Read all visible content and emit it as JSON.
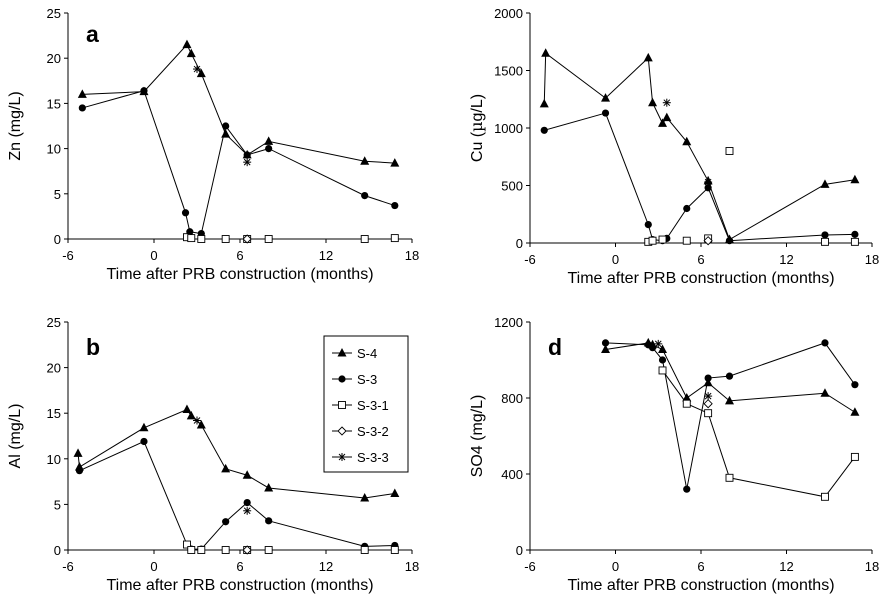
{
  "chart_data": [
    {
      "type": "line",
      "panel_label": "a",
      "xlabel": "Time after PRB construction (months)",
      "ylabel": "Zn  (mg/L)",
      "xlim": [
        -6,
        18
      ],
      "ylim": [
        0,
        25
      ],
      "xticks": [
        -6,
        0,
        6,
        12,
        18
      ],
      "yticks": [
        0,
        5,
        10,
        15,
        20,
        25
      ],
      "grid": false,
      "series": [
        {
          "name": "S-4",
          "marker": "triangle",
          "connected": true,
          "points": [
            [
              -5,
              16.0
            ],
            [
              -0.7,
              16.3
            ],
            [
              2.3,
              21.5
            ],
            [
              2.6,
              20.5
            ],
            [
              3.3,
              18.3
            ],
            [
              5,
              11.6
            ],
            [
              6.5,
              9.3
            ],
            [
              8,
              10.8
            ],
            [
              14.7,
              8.6
            ],
            [
              16.8,
              8.4
            ]
          ]
        },
        {
          "name": "S-3",
          "marker": "circle",
          "connected": true,
          "points": [
            [
              -5,
              14.5
            ],
            [
              -0.7,
              16.4
            ],
            [
              2.2,
              2.9
            ],
            [
              2.5,
              0.8
            ],
            [
              3.3,
              0.6
            ],
            [
              5,
              12.5
            ],
            [
              6.5,
              9.3
            ],
            [
              8,
              10.0
            ],
            [
              14.7,
              4.8
            ],
            [
              16.8,
              3.7
            ]
          ]
        },
        {
          "name": "S-3-1",
          "marker": "square",
          "connected": false,
          "points": [
            [
              2.3,
              0.2
            ],
            [
              2.6,
              0.1
            ],
            [
              3.3,
              0.0
            ],
            [
              5,
              0.0
            ],
            [
              6.5,
              0.0
            ],
            [
              8,
              0.0
            ],
            [
              14.7,
              0.0
            ],
            [
              16.8,
              0.1
            ]
          ]
        },
        {
          "name": "S-3-2",
          "marker": "diamond",
          "connected": false,
          "points": [
            [
              6.5,
              0.0
            ]
          ]
        },
        {
          "name": "S-3-3",
          "marker": "star",
          "connected": false,
          "points": [
            [
              3.0,
              18.8
            ],
            [
              6.5,
              8.5
            ]
          ]
        }
      ]
    },
    {
      "type": "line",
      "panel_label": "",
      "xlabel": "Time after PRB construction (months)",
      "ylabel": "Cu  (µg/L)",
      "xlim": [
        -6,
        18
      ],
      "ylim": [
        0,
        2000
      ],
      "xticks": [
        -6,
        0,
        6,
        12,
        18
      ],
      "yticks": [
        0,
        500,
        1000,
        1500,
        2000
      ],
      "grid": false,
      "series": [
        {
          "name": "S-4",
          "marker": "triangle",
          "connected": true,
          "points": [
            [
              -5,
              1210
            ],
            [
              -4.9,
              1650
            ],
            [
              -0.7,
              1260
            ],
            [
              2.3,
              1610
            ],
            [
              2.6,
              1220
            ],
            [
              3.3,
              1040
            ],
            [
              3.6,
              1090
            ],
            [
              5,
              880
            ],
            [
              6.5,
              540
            ],
            [
              8,
              30
            ],
            [
              14.7,
              510
            ],
            [
              16.8,
              550
            ]
          ]
        },
        {
          "name": "S-3",
          "marker": "circle",
          "connected": true,
          "points": [
            [
              -5,
              980
            ],
            [
              -0.7,
              1130
            ],
            [
              2.3,
              160
            ],
            [
              2.6,
              30
            ],
            [
              3.3,
              20
            ],
            [
              3.6,
              40
            ],
            [
              5,
              300
            ],
            [
              6.5,
              480
            ],
            [
              8,
              20
            ],
            [
              14.7,
              70
            ],
            [
              16.8,
              75
            ]
          ]
        },
        {
          "name": "S-3-1",
          "marker": "square",
          "connected": false,
          "points": [
            [
              2.3,
              10
            ],
            [
              2.6,
              20
            ],
            [
              3.3,
              30
            ],
            [
              5,
              20
            ],
            [
              6.5,
              40
            ],
            [
              8,
              800
            ],
            [
              14.7,
              10
            ],
            [
              16.8,
              10
            ]
          ]
        },
        {
          "name": "S-3-2",
          "marker": "diamond",
          "connected": false,
          "points": [
            [
              6.5,
              20
            ]
          ]
        },
        {
          "name": "S-3-3",
          "marker": "star",
          "connected": false,
          "points": [
            [
              3.6,
              1220
            ],
            [
              6.5,
              530
            ]
          ]
        }
      ]
    },
    {
      "type": "line",
      "panel_label": "b",
      "xlabel": "Time after PRB construction (months)",
      "ylabel": "Al (mg/L)",
      "xlim": [
        -6,
        18
      ],
      "ylim": [
        0,
        25
      ],
      "xticks": [
        -6,
        0,
        6,
        12,
        18
      ],
      "yticks": [
        0,
        5,
        10,
        15,
        20,
        25
      ],
      "grid": false,
      "legend": {
        "position": "top-right",
        "entries": [
          "S-4",
          "S-3",
          "S-3-1",
          "S-3-2",
          "S-3-3"
        ]
      },
      "series": [
        {
          "name": "S-4",
          "marker": "triangle",
          "connected": true,
          "points": [
            [
              -5.3,
              10.6
            ],
            [
              -5.2,
              9.1
            ],
            [
              -0.7,
              13.4
            ],
            [
              2.3,
              15.4
            ],
            [
              2.6,
              14.7
            ],
            [
              3.3,
              13.7
            ],
            [
              5,
              8.9
            ],
            [
              6.5,
              8.2
            ],
            [
              8,
              6.8
            ],
            [
              14.7,
              5.7
            ],
            [
              16.8,
              6.2
            ]
          ]
        },
        {
          "name": "S-3",
          "marker": "circle",
          "connected": true,
          "points": [
            [
              -5.2,
              8.7
            ],
            [
              -0.7,
              11.9
            ],
            [
              2.3,
              0.6
            ],
            [
              2.6,
              0.1
            ],
            [
              3.3,
              0.1
            ],
            [
              5,
              3.1
            ],
            [
              6.5,
              5.2
            ],
            [
              8,
              3.2
            ],
            [
              14.7,
              0.4
            ],
            [
              16.8,
              0.5
            ]
          ]
        },
        {
          "name": "S-3-1",
          "marker": "square",
          "connected": false,
          "points": [
            [
              2.3,
              0.6
            ],
            [
              2.6,
              0.0
            ],
            [
              3.3,
              0.0
            ],
            [
              5,
              0.0
            ],
            [
              6.5,
              0.0
            ],
            [
              8,
              0.0
            ],
            [
              14.7,
              0.0
            ],
            [
              16.8,
              0.0
            ]
          ]
        },
        {
          "name": "S-3-2",
          "marker": "diamond",
          "connected": false,
          "points": [
            [
              6.5,
              0.0
            ]
          ]
        },
        {
          "name": "S-3-3",
          "marker": "star",
          "connected": false,
          "points": [
            [
              3.0,
              14.2
            ],
            [
              6.5,
              4.3
            ]
          ]
        }
      ]
    },
    {
      "type": "line",
      "panel_label": "d",
      "xlabel": "Time after PRB construction (months)",
      "ylabel": "SO4 (mg/L)",
      "xlim": [
        -6,
        18
      ],
      "ylim": [
        0,
        1200
      ],
      "xticks": [
        -6,
        0,
        6,
        12,
        18
      ],
      "yticks": [
        0,
        400,
        800,
        1200
      ],
      "grid": false,
      "series": [
        {
          "name": "S-4",
          "marker": "triangle",
          "connected": true,
          "points": [
            [
              -0.7,
              1055
            ],
            [
              2.3,
              1090
            ],
            [
              2.6,
              1080
            ],
            [
              3.3,
              1055
            ],
            [
              5,
              800
            ],
            [
              6.5,
              880
            ],
            [
              8,
              785
            ],
            [
              14.7,
              825
            ],
            [
              16.8,
              725
            ]
          ]
        },
        {
          "name": "S-3",
          "marker": "circle",
          "connected": true,
          "points": [
            [
              -0.7,
              1090
            ],
            [
              2.3,
              1080
            ],
            [
              2.6,
              1065
            ],
            [
              3.3,
              1000
            ],
            [
              5,
              320
            ],
            [
              6.5,
              905
            ],
            [
              8,
              915
            ],
            [
              14.7,
              1090
            ],
            [
              16.8,
              870
            ]
          ]
        },
        {
          "name": "S-3-1",
          "marker": "square",
          "connected": true,
          "points": [
            [
              3.3,
              945
            ],
            [
              5,
              770
            ],
            [
              6.5,
              720
            ],
            [
              8,
              380
            ],
            [
              14.7,
              280
            ],
            [
              16.8,
              490
            ]
          ]
        },
        {
          "name": "S-3-2",
          "marker": "diamond",
          "connected": false,
          "points": [
            [
              6.5,
              770
            ]
          ]
        },
        {
          "name": "S-3-3",
          "marker": "star",
          "connected": false,
          "points": [
            [
              3.0,
              1085
            ],
            [
              6.5,
              810
            ]
          ]
        }
      ]
    }
  ]
}
